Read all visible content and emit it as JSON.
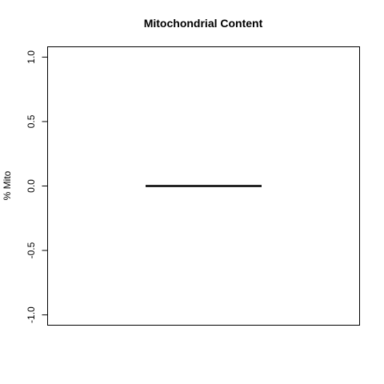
{
  "chart_data": {
    "type": "boxplot",
    "title": "Mitochondrial Content",
    "xlabel": "",
    "ylabel": "% Mito",
    "ylim": [
      -1.08,
      1.08
    ],
    "yticks": [
      -1.0,
      -0.5,
      0.0,
      0.5,
      1.0
    ],
    "ytick_labels": [
      "-1.0",
      "-0.5",
      "0.0",
      "0.5",
      "1.0"
    ],
    "grid": false,
    "legend": "none",
    "series": [
      {
        "values": [
          0,
          0,
          0,
          0,
          0
        ],
        "min": 0,
        "q1": 0,
        "median": 0,
        "q3": 0,
        "max": 0
      }
    ],
    "colors": {
      "median_line": "#000000",
      "frame": "#000000"
    }
  }
}
